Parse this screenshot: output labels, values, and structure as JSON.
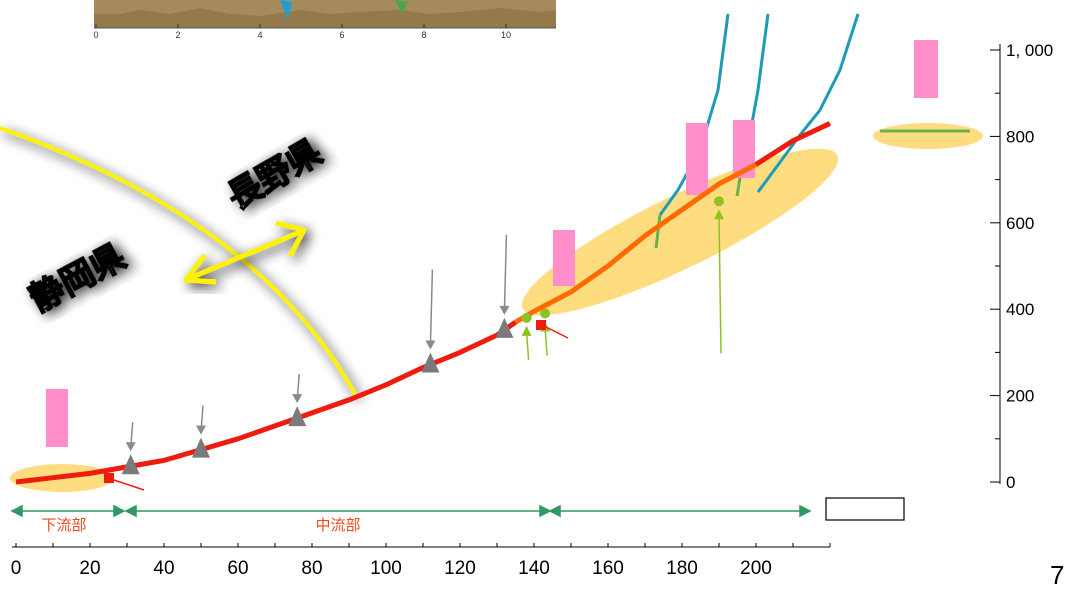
{
  "diagram": {
    "prefectures": {
      "shizuoka": "静岡県",
      "nagano": "長野県"
    },
    "sections": {
      "lower": "下流部",
      "middle": "中流部"
    },
    "page_number": "7",
    "inset_x_ticks": [
      "0",
      "2",
      "4",
      "6",
      "8",
      "10"
    ],
    "colors": {
      "river_profile": "#ee1c0e",
      "highlight": "#fcd460",
      "section_arrow": "#2e9a62",
      "tributary": "#1e9bb5",
      "marker_pink": "#ff8ecb",
      "dam": "#7a7a7a",
      "green_marker": "#8dc21f"
    }
  },
  "chart_data": {
    "type": "line",
    "x_ticks": [
      "0",
      "20",
      "40",
      "60",
      "80",
      "100",
      "120",
      "140",
      "160",
      "180",
      "200"
    ],
    "y_ticks": [
      "0",
      "200",
      "400",
      "600",
      "800",
      "1, 000"
    ],
    "xlim": [
      0,
      220
    ],
    "ylim": [
      0,
      1000
    ],
    "series": [
      {
        "x": [
          0,
          10,
          20,
          30,
          40,
          50,
          60,
          70,
          80,
          90,
          100,
          110,
          120,
          130,
          135,
          140,
          150,
          160,
          170,
          180,
          190,
          200,
          210,
          220
        ],
        "values": [
          0,
          10,
          20,
          35,
          50,
          75,
          100,
          130,
          160,
          190,
          225,
          265,
          300,
          340,
          370,
          395,
          440,
          500,
          570,
          630,
          690,
          735,
          790,
          830
        ]
      }
    ],
    "dams_x": [
      31,
      50,
      76,
      112,
      132
    ],
    "green_markers": [
      {
        "x": 138,
        "y": 380
      },
      {
        "x": 143,
        "y": 390
      },
      {
        "x": 190,
        "y": 650
      }
    ]
  }
}
